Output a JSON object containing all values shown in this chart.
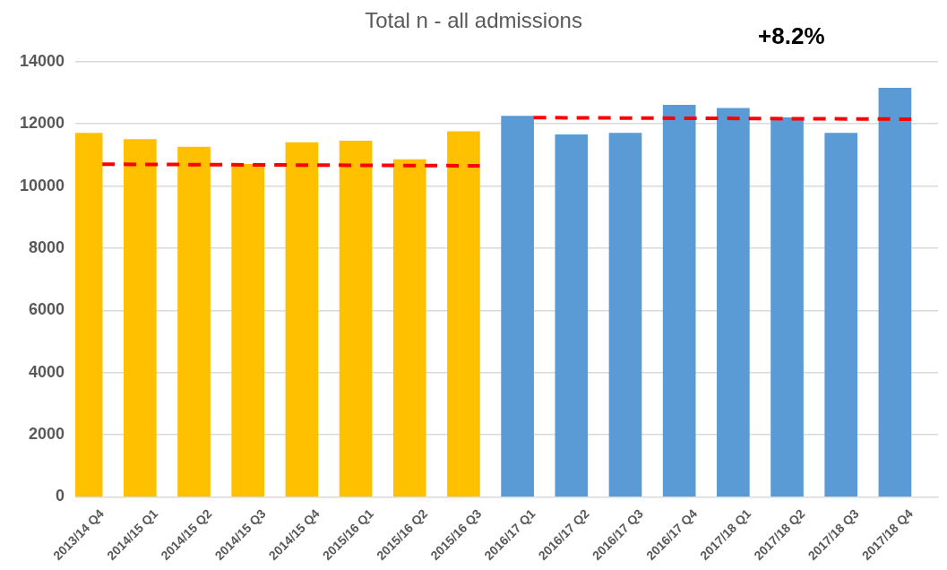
{
  "chart_data": {
    "type": "bar",
    "title": "Total n - all admissions",
    "categories": [
      "2013/14 Q4",
      "2014/15 Q1",
      "2014/15 Q2",
      "2014/15 Q3",
      "2014/15 Q4",
      "2015/16 Q1",
      "2015/16 Q2",
      "2015/16 Q3",
      "2016/17 Q1",
      "2016/17 Q2",
      "2016/17 Q3",
      "2016/17 Q4",
      "2017/18 Q1",
      "2017/18 Q2",
      "2017/18 Q3",
      "2017/18 Q4"
    ],
    "series": [
      {
        "colors": [
          "#ffc000",
          "#ffc000",
          "#ffc000",
          "#ffc000",
          "#ffc000",
          "#ffc000",
          "#ffc000",
          "#ffc000",
          "#5b9bd5",
          "#5b9bd5",
          "#5b9bd5",
          "#5b9bd5",
          "#5b9bd5",
          "#5b9bd5",
          "#5b9bd5",
          "#5b9bd5"
        ],
        "values": [
          11700,
          11500,
          11250,
          10700,
          11400,
          11450,
          10850,
          11750,
          12250,
          11650,
          11700,
          12600,
          12500,
          12200,
          11700,
          13150
        ]
      },
      {
        "type": "line",
        "color": "#ff0000",
        "line_style": "dashed",
        "x": [
          "2013/14 Q4",
          "2015/16 Q3"
        ],
        "values": [
          10700,
          10650
        ]
      },
      {
        "type": "line",
        "color": "#ff0000",
        "line_style": "dashed",
        "x": [
          "2016/17 Q1",
          "2017/18 Q4"
        ],
        "values": [
          12200,
          12150
        ]
      }
    ],
    "ylim": [
      0,
      14000
    ],
    "yticks": [
      0,
      2000,
      4000,
      6000,
      8000,
      10000,
      12000,
      14000
    ],
    "grid": "y",
    "legend": false,
    "marker": "none",
    "annotations": [
      "+8.2%"
    ]
  }
}
